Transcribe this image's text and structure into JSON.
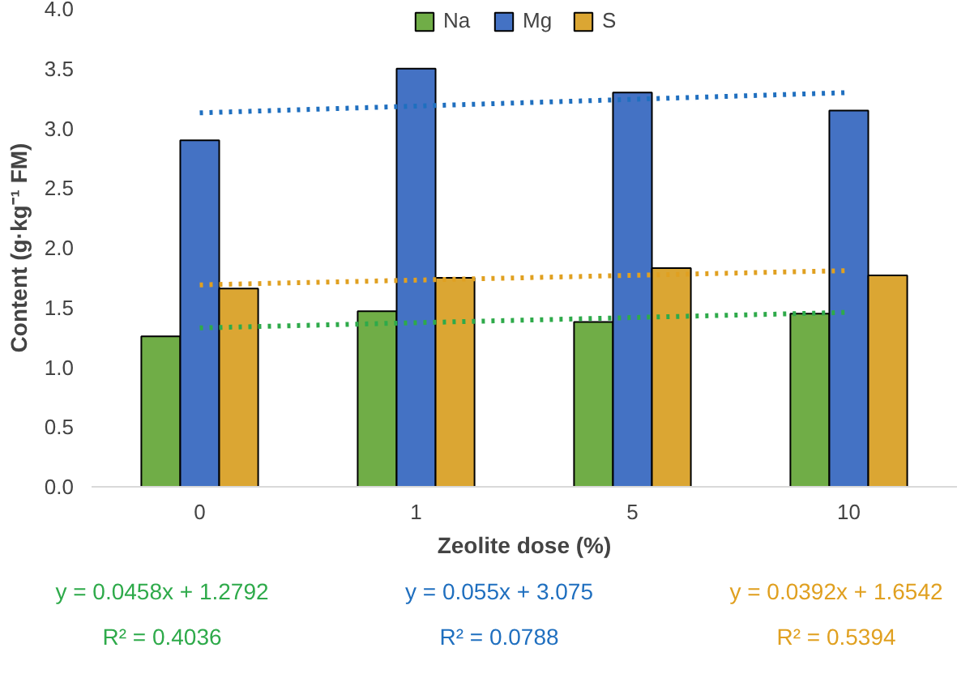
{
  "chart_data": {
    "type": "bar",
    "xlabel": "Zeolite dose (%)",
    "ylabel": "Content (g·kg⁻¹ FM)",
    "categories": [
      "0",
      "1",
      "5",
      "10"
    ],
    "series": [
      {
        "name": "Na",
        "color": "#70ad47",
        "values": [
          1.26,
          1.47,
          1.38,
          1.45
        ]
      },
      {
        "name": "Mg",
        "color": "#4472c4",
        "values": [
          2.9,
          3.5,
          3.3,
          3.15
        ]
      },
      {
        "name": "S",
        "color": "#dba633",
        "values": [
          1.66,
          1.75,
          1.83,
          1.77
        ]
      },
      {
        "type": "line",
        "x": [
          "0",
          "10"
        ],
        "color": "#2eaa4a",
        "line_style": "dotted",
        "values": [
          1.33,
          1.46
        ]
      },
      {
        "type": "line",
        "x": [
          "0",
          "10"
        ],
        "color": "#1f6fbf",
        "line_style": "dotted",
        "values": [
          3.13,
          3.3
        ]
      },
      {
        "type": "line",
        "x": [
          "0",
          "10"
        ],
        "color": "#e0a020",
        "line_style": "dotted",
        "values": [
          1.69,
          1.81
        ]
      }
    ],
    "ylim": [
      0,
      4
    ],
    "yticks": [
      {
        "value": 0,
        "label": "0.0"
      },
      {
        "value": 0.5,
        "label": "0.5"
      },
      {
        "value": 1,
        "label": "1.0"
      },
      {
        "value": 1.5,
        "label": "1.5"
      },
      {
        "value": 2,
        "label": "2.0"
      },
      {
        "value": 2.5,
        "label": "2.5"
      },
      {
        "value": 3,
        "label": "3.0"
      },
      {
        "value": 3.5,
        "label": "3.5"
      },
      {
        "value": 4,
        "label": "4.0"
      }
    ],
    "legend": "top",
    "annotations": [
      "y = 0.0458x + 1.2792",
      "R² = 0.4036",
      "y = 0.055x + 3.075",
      "R² = 0.0788",
      "y = 0.0392x + 1.6542",
      "R² = 0.5394"
    ]
  }
}
